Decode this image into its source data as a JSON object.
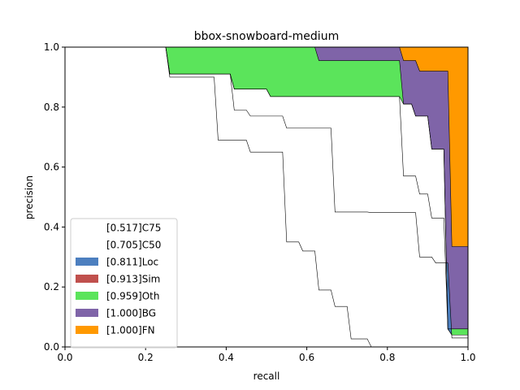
{
  "chart_data": {
    "type": "area",
    "title": "bbox-snowboard-medium",
    "xlabel": "recall",
    "ylabel": "precision",
    "xlim": [
      0,
      1
    ],
    "ylim": [
      0,
      1
    ],
    "xticks": [
      "0.0",
      "0.2",
      "0.4",
      "0.6",
      "0.8",
      "1.0"
    ],
    "yticks": [
      "0.0",
      "0.2",
      "0.4",
      "0.6",
      "0.8",
      "1.0"
    ],
    "grid": false,
    "legend_position": "lower-left",
    "series": [
      {
        "name": "[0.517]C75",
        "color": "#ffffff",
        "points": [
          [
            0,
            1
          ],
          [
            0.25,
            1
          ],
          [
            0.26,
            0.9
          ],
          [
            0.37,
            0.9
          ],
          [
            0.38,
            0.69
          ],
          [
            0.45,
            0.69
          ],
          [
            0.46,
            0.65
          ],
          [
            0.54,
            0.65
          ],
          [
            0.55,
            0.35
          ],
          [
            0.58,
            0.35
          ],
          [
            0.59,
            0.32
          ],
          [
            0.62,
            0.32
          ],
          [
            0.63,
            0.19
          ],
          [
            0.66,
            0.19
          ],
          [
            0.67,
            0.135
          ],
          [
            0.7,
            0.135
          ],
          [
            0.71,
            0.027
          ],
          [
            0.75,
            0.027
          ],
          [
            0.76,
            0
          ],
          [
            1,
            0
          ]
        ]
      },
      {
        "name": "[0.705]C50",
        "color": "#ffffff",
        "points": [
          [
            0,
            1
          ],
          [
            0.25,
            1
          ],
          [
            0.26,
            0.91
          ],
          [
            0.41,
            0.91
          ],
          [
            0.42,
            0.86
          ],
          [
            0.5,
            0.86
          ],
          [
            0.51,
            0.835
          ],
          [
            0.83,
            0.835
          ],
          [
            0.84,
            0.81
          ],
          [
            0.86,
            0.81
          ],
          [
            0.87,
            0.77
          ],
          [
            0.9,
            0.77
          ],
          [
            0.91,
            0.66
          ],
          [
            0.94,
            0.66
          ],
          [
            0.95,
            0.06
          ],
          [
            0.96,
            0.04
          ],
          [
            1,
            0.04
          ]
        ]
      },
      {
        "name": "[0.811]Loc",
        "color": "#4c7fbf",
        "points": [
          [
            0,
            1
          ],
          [
            0.25,
            1
          ],
          [
            0.26,
            0.91
          ],
          [
            0.41,
            0.91
          ],
          [
            0.42,
            0.79
          ],
          [
            0.45,
            0.79
          ],
          [
            0.46,
            0.77
          ],
          [
            0.54,
            0.77
          ],
          [
            0.55,
            0.73
          ],
          [
            0.66,
            0.73
          ],
          [
            0.67,
            0.45
          ],
          [
            0.75,
            0.45
          ],
          [
            0.76,
            0.448
          ],
          [
            0.87,
            0.448
          ],
          [
            0.88,
            0.3
          ],
          [
            0.91,
            0.3
          ],
          [
            0.92,
            0.28
          ],
          [
            0.95,
            0.28
          ],
          [
            0.96,
            0.03
          ],
          [
            1,
            0.03
          ]
        ]
      },
      {
        "name": "[0.913]Sim",
        "color": "#c0504d",
        "points": [
          [
            0,
            1
          ],
          [
            0.25,
            1
          ],
          [
            0.26,
            0.91
          ],
          [
            0.41,
            0.91
          ],
          [
            0.42,
            0.86
          ],
          [
            0.5,
            0.86
          ],
          [
            0.51,
            0.835
          ],
          [
            0.83,
            0.835
          ],
          [
            0.84,
            0.57
          ],
          [
            0.87,
            0.57
          ],
          [
            0.88,
            0.51
          ],
          [
            0.9,
            0.51
          ],
          [
            0.91,
            0.43
          ],
          [
            0.93,
            0.43
          ],
          [
            0.94,
            0.43
          ],
          [
            0.95,
            0.06
          ],
          [
            0.96,
            0.04
          ],
          [
            1,
            0.04
          ]
        ]
      },
      {
        "name": "[0.959]Oth",
        "color": "#5be45b",
        "points": [
          [
            0,
            1
          ],
          [
            0.62,
            1
          ],
          [
            0.63,
            0.955
          ],
          [
            0.83,
            0.955
          ],
          [
            0.84,
            0.81
          ],
          [
            0.86,
            0.81
          ],
          [
            0.87,
            0.77
          ],
          [
            0.9,
            0.77
          ],
          [
            0.91,
            0.66
          ],
          [
            0.94,
            0.66
          ],
          [
            0.95,
            0.06
          ],
          [
            0.96,
            0.06
          ],
          [
            1,
            0.06
          ]
        ]
      },
      {
        "name": "[1.000]BG",
        "color": "#7f64a8",
        "points": [
          [
            0,
            1
          ],
          [
            0.83,
            1
          ],
          [
            0.84,
            0.955
          ],
          [
            0.87,
            0.955
          ],
          [
            0.88,
            0.92
          ],
          [
            0.95,
            0.92
          ],
          [
            0.96,
            0.335
          ],
          [
            1,
            0.335
          ]
        ]
      },
      {
        "name": "[1.000]FN",
        "color": "#ff9900",
        "points": [
          [
            0,
            1
          ],
          [
            1,
            1
          ]
        ]
      }
    ]
  }
}
